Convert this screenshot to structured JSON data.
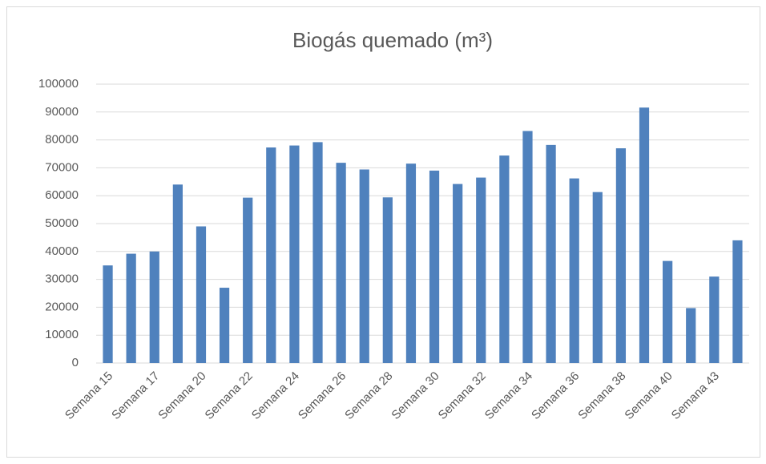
{
  "chart_data": {
    "type": "bar",
    "title": "Biogás quemado (m³)",
    "categories": [
      "Semana 15",
      null,
      "Semana 17",
      null,
      "Semana 20",
      null,
      "Semana 22",
      null,
      "Semana 24",
      null,
      "Semana 26",
      null,
      "Semana 28",
      null,
      "Semana 30",
      null,
      "Semana 32",
      null,
      "Semana 34",
      null,
      "Semana 36",
      null,
      "Semana 38",
      null,
      "Semana 40",
      null,
      "Semana 43",
      null
    ],
    "values": [
      35000,
      39200,
      40000,
      64000,
      49000,
      27000,
      59300,
      77300,
      78000,
      79200,
      71800,
      69400,
      59400,
      71500,
      69000,
      64200,
      66500,
      74400,
      83200,
      78200,
      66200,
      61300,
      77000,
      91600,
      36600,
      19700,
      31000,
      44000
    ],
    "color": "#4f81bd",
    "ylim": [
      0,
      100000
    ],
    "yticks": [
      0,
      10000,
      20000,
      30000,
      40000,
      50000,
      60000,
      70000,
      80000,
      90000,
      100000
    ],
    "grid": true
  }
}
